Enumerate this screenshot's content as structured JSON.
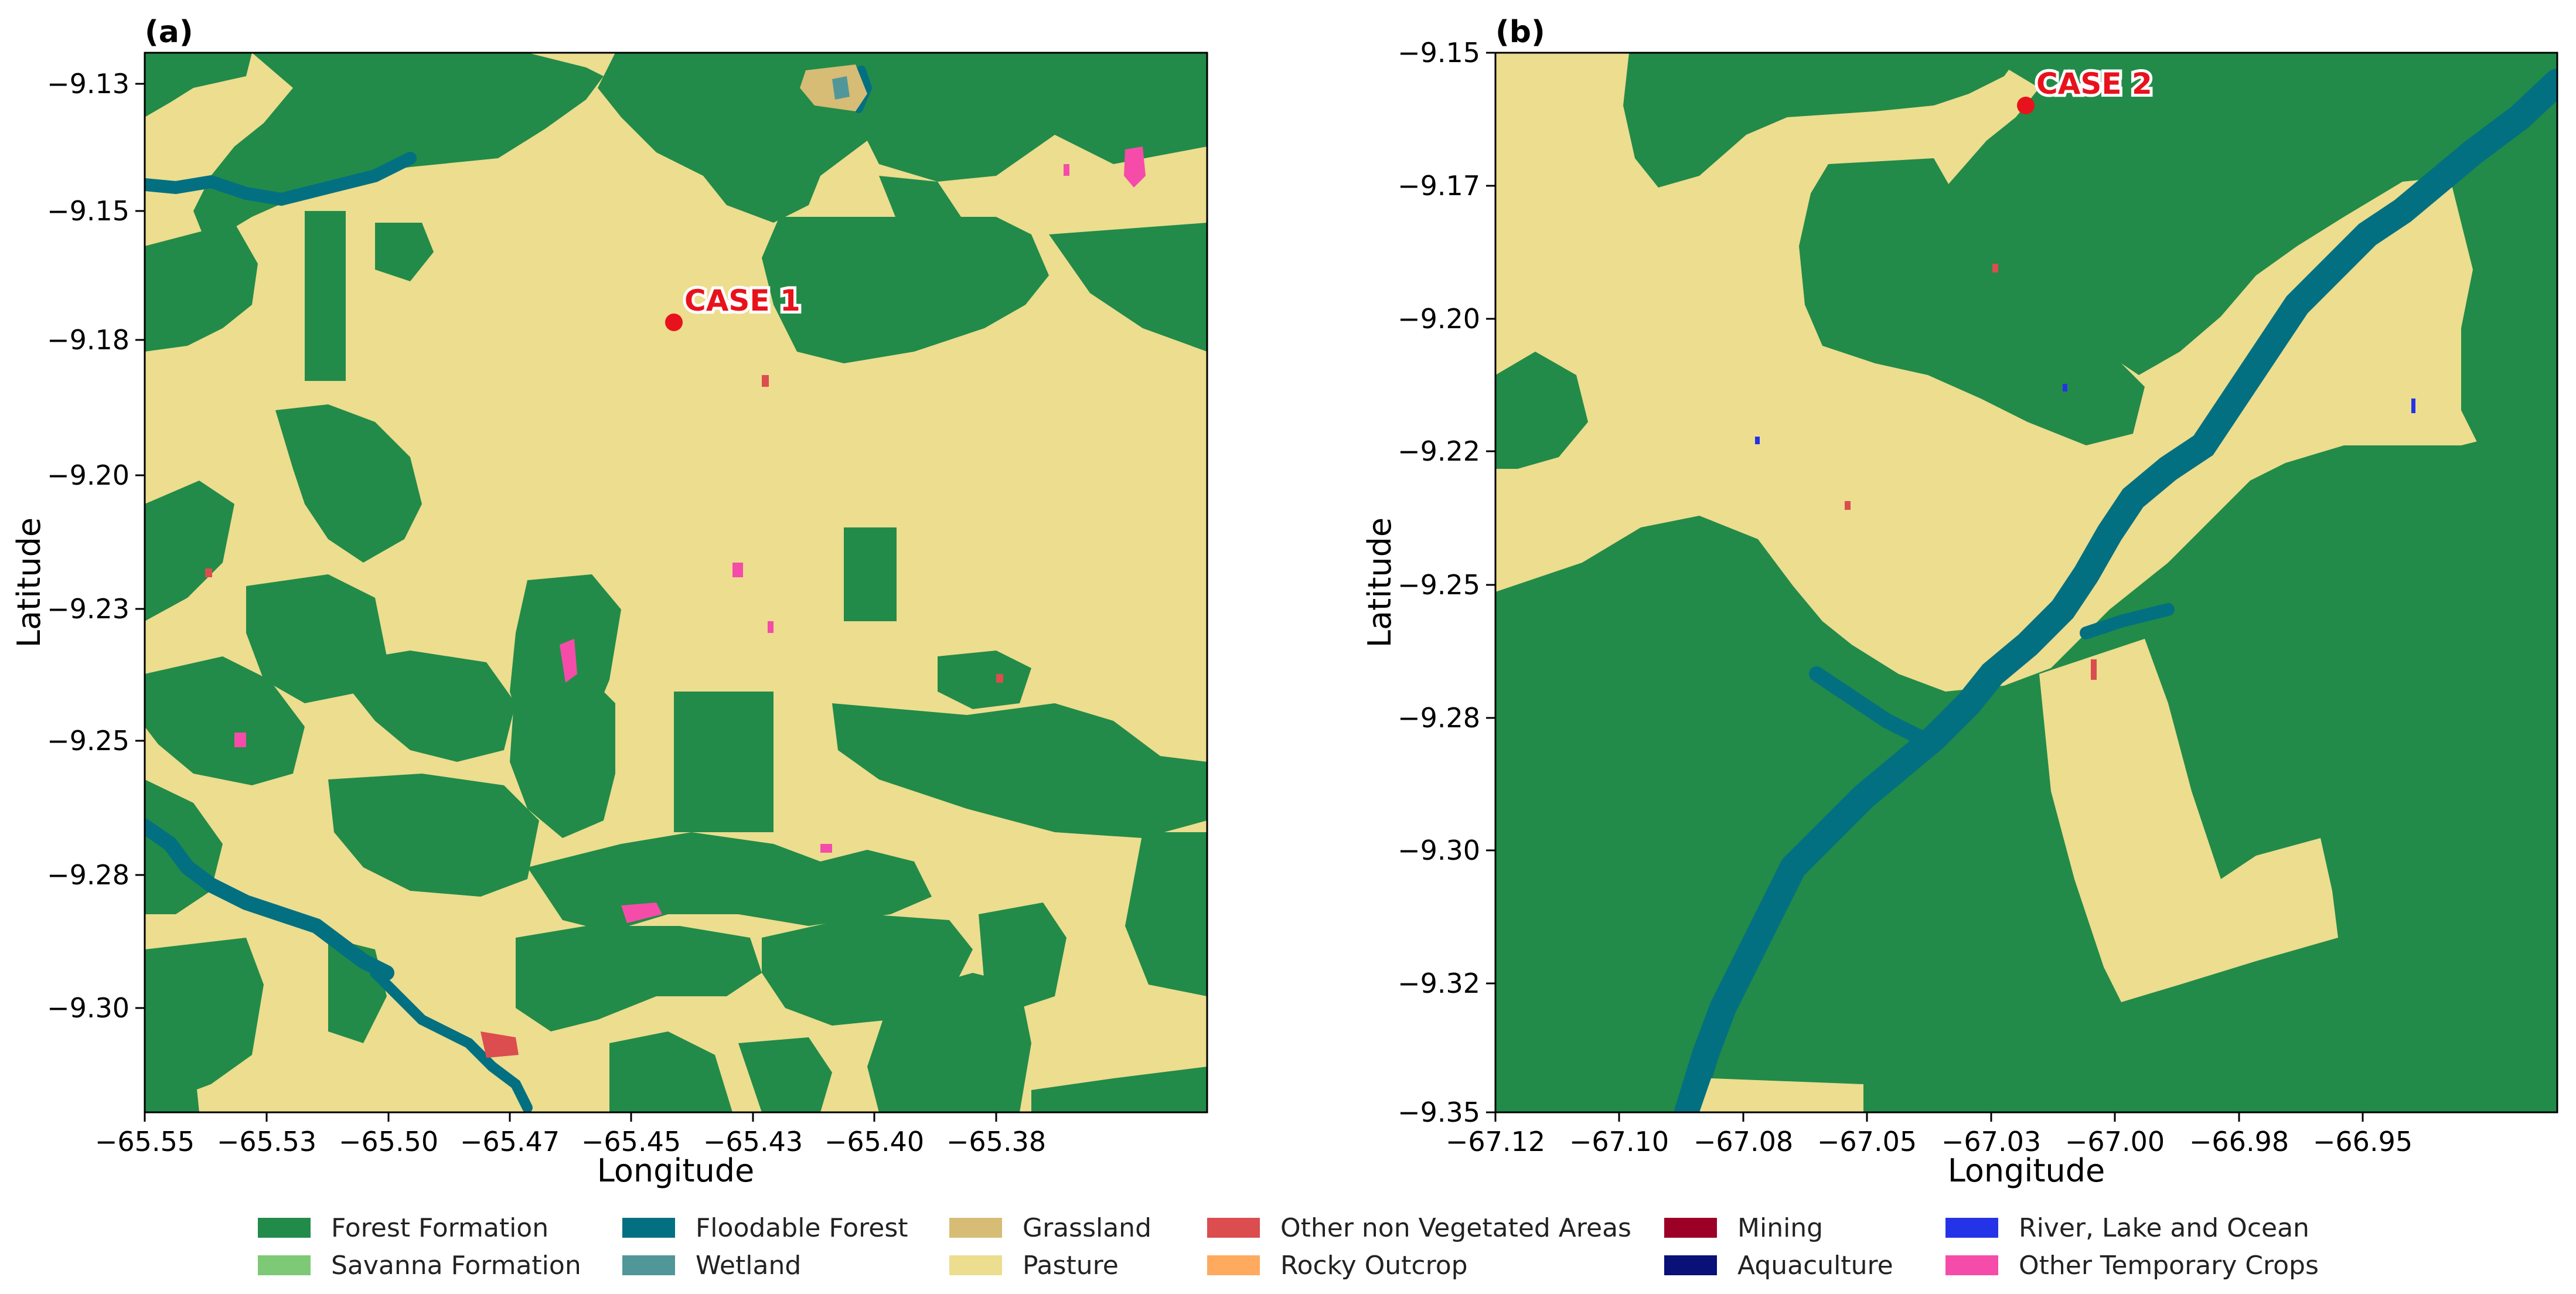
{
  "panels": [
    {
      "label": "(a)",
      "xlabel": "Longitude",
      "ylabel": "Latitude",
      "xticks": [
        "−65.55",
        "−65.53",
        "−65.50",
        "−65.47",
        "−65.45",
        "−65.43",
        "−65.40",
        "−65.38"
      ],
      "yticks": [
        "−9.13",
        "−9.15",
        "−9.18",
        "−9.20",
        "−9.23",
        "−9.25",
        "−9.28",
        "−9.30"
      ],
      "case": {
        "label": "CASE 1",
        "lon": -65.455,
        "lat": -9.176
      }
    },
    {
      "label": "(b)",
      "xlabel": "Longitude",
      "ylabel": "Latitude",
      "xticks": [
        "−67.12",
        "−67.10",
        "−67.08",
        "−67.05",
        "−67.03",
        "−67.00",
        "−66.98",
        "−66.95"
      ],
      "yticks": [
        "−9.15",
        "−9.17",
        "−9.20",
        "−9.22",
        "−9.25",
        "−9.28",
        "−9.30",
        "−9.32",
        "−9.35"
      ],
      "case": {
        "label": "CASE 2",
        "lon": -67.033,
        "lat": -9.16
      }
    }
  ],
  "colors": {
    "forest": "#228b49",
    "floodable": "#037081",
    "pasture": "#ecdd8f",
    "grassland": "#d6bc74",
    "wetland": "#519799",
    "other_crops": "#f54ca9",
    "non_vegetated": "#db4d4f",
    "water": "#2533e8",
    "case_marker": "#e8121c"
  },
  "legend": [
    {
      "label": "Forest Formation",
      "color": "#228b49"
    },
    {
      "label": "Savanna Formation",
      "color": "#7dc975"
    },
    {
      "label": "Floodable Forest",
      "color": "#037081"
    },
    {
      "label": "Wetland",
      "color": "#519799"
    },
    {
      "label": "Grassland",
      "color": "#d6bc74"
    },
    {
      "label": "Pasture",
      "color": "#ecdd8f"
    },
    {
      "label": "Other non Vegetated Areas",
      "color": "#db4d4f"
    },
    {
      "label": "Rocky Outcrop",
      "color": "#ffaa5f"
    },
    {
      "label": "Mining",
      "color": "#9c0027"
    },
    {
      "label": "Aquaculture",
      "color": "#091077"
    },
    {
      "label": "River, Lake and Ocean",
      "color": "#2533e8"
    },
    {
      "label": "Other Temporary Crops",
      "color": "#f54ca9"
    }
  ]
}
